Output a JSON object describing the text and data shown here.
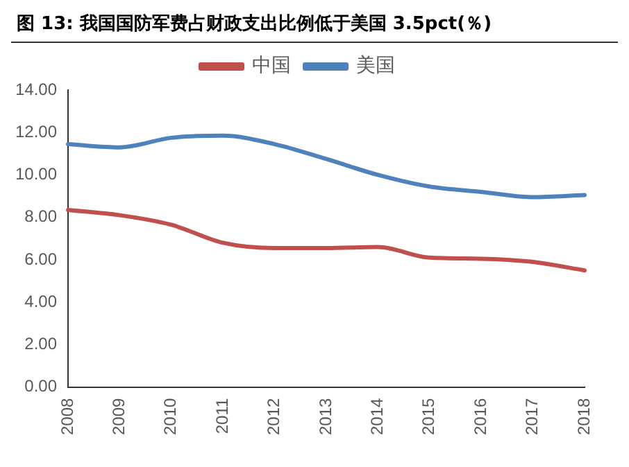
{
  "chart_data": {
    "type": "line",
    "title": "图 13: 我国国防军费占财政支出比例低于美国 3.5pct(％)",
    "categories": [
      "2008",
      "2009",
      "2010",
      "2011",
      "2012",
      "2013",
      "2014",
      "2015",
      "2016",
      "2017",
      "2018"
    ],
    "series": [
      {
        "name": "中国",
        "color": "#c0504d",
        "values": [
          8.35,
          8.1,
          7.65,
          6.8,
          6.55,
          6.55,
          6.6,
          6.1,
          6.05,
          5.9,
          5.5
        ]
      },
      {
        "name": "美国",
        "color": "#4f81bd",
        "values": [
          11.45,
          11.3,
          11.75,
          11.85,
          11.45,
          10.75,
          10.0,
          9.45,
          9.2,
          8.95,
          9.05
        ]
      }
    ],
    "ylim": [
      0,
      14
    ],
    "yticks": [
      {
        "value": 0,
        "label": "0.00"
      },
      {
        "value": 2,
        "label": "2.00"
      },
      {
        "value": 4,
        "label": "4.00"
      },
      {
        "value": 6,
        "label": "6.00"
      },
      {
        "value": 8,
        "label": "8.00"
      },
      {
        "value": 10,
        "label": "10.00"
      },
      {
        "value": 12,
        "label": "12.00"
      },
      {
        "value": 14,
        "label": "14.00"
      }
    ],
    "grid": false,
    "legend": "top",
    "marker": "none",
    "line_style": "solid"
  }
}
